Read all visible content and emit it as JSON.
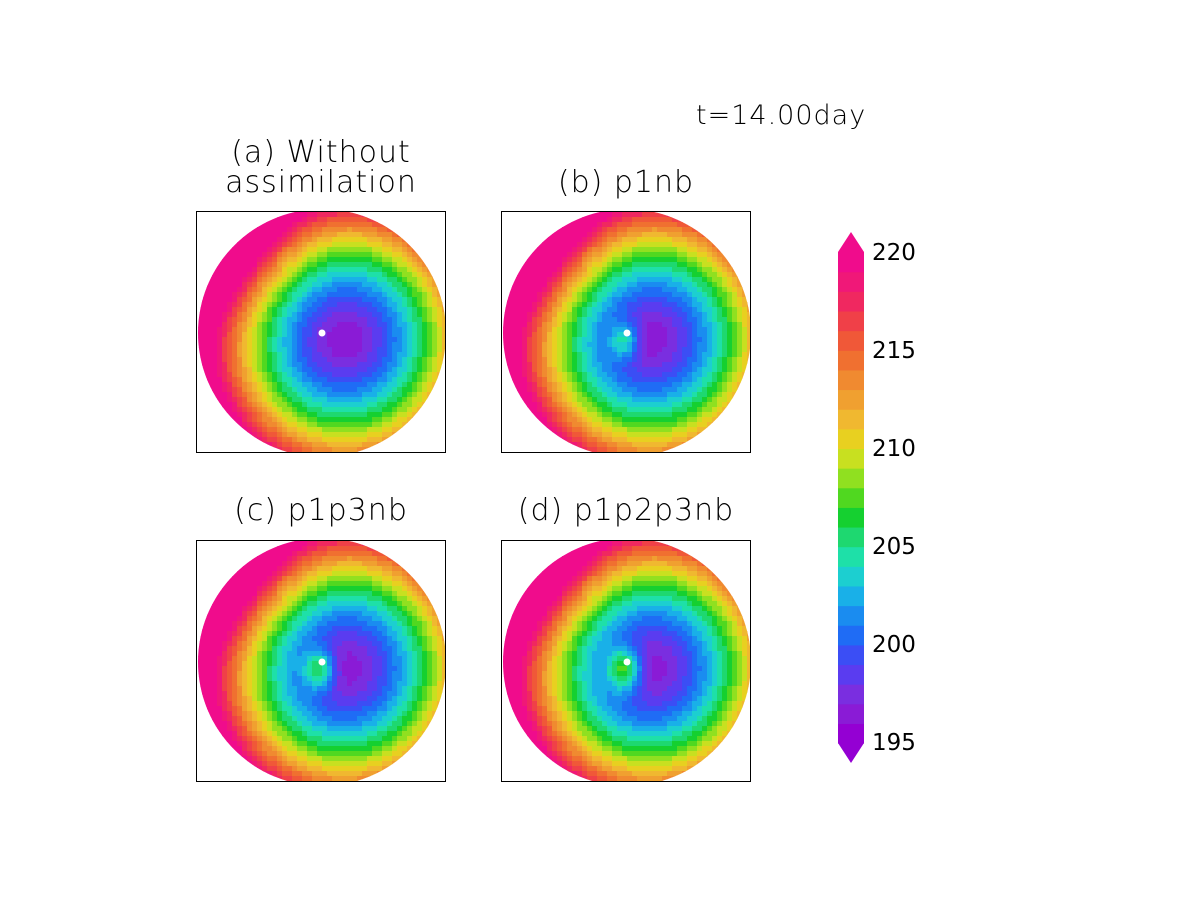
{
  "figure": {
    "time_label": "t=14.00day"
  },
  "panels": [
    {
      "title_line1": "(a) Without",
      "title_line2": "assimilation",
      "id": "a",
      "anomaly": 0
    },
    {
      "title_line1": "",
      "title_line2": "(b) p1nb",
      "id": "b",
      "anomaly": 1
    },
    {
      "title_line1": "",
      "title_line2": "(c) p1p3nb",
      "id": "c",
      "anomaly": 2
    },
    {
      "title_line1": "",
      "title_line2": "(d) p1p2p3nb",
      "id": "d",
      "anomaly": 3
    }
  ],
  "colorbar": {
    "min": 195,
    "max": 220,
    "ticks": [
      "220",
      "215",
      "210",
      "205",
      "200",
      "195"
    ],
    "extend": "both",
    "colors": [
      "#9400d3",
      "#8a1bd6",
      "#7a2ee0",
      "#5a3cf0",
      "#3b4ef5",
      "#1f6cf5",
      "#1a8cf0",
      "#19b0e8",
      "#1ccfd0",
      "#1ee0a8",
      "#1ed870",
      "#15d030",
      "#50d820",
      "#90e020",
      "#c8e020",
      "#e8d020",
      "#f0b830",
      "#f0a030",
      "#f08a30",
      "#f07030",
      "#f05838",
      "#f04048",
      "#f02860",
      "#f01878",
      "#f00c8c"
    ]
  }
}
